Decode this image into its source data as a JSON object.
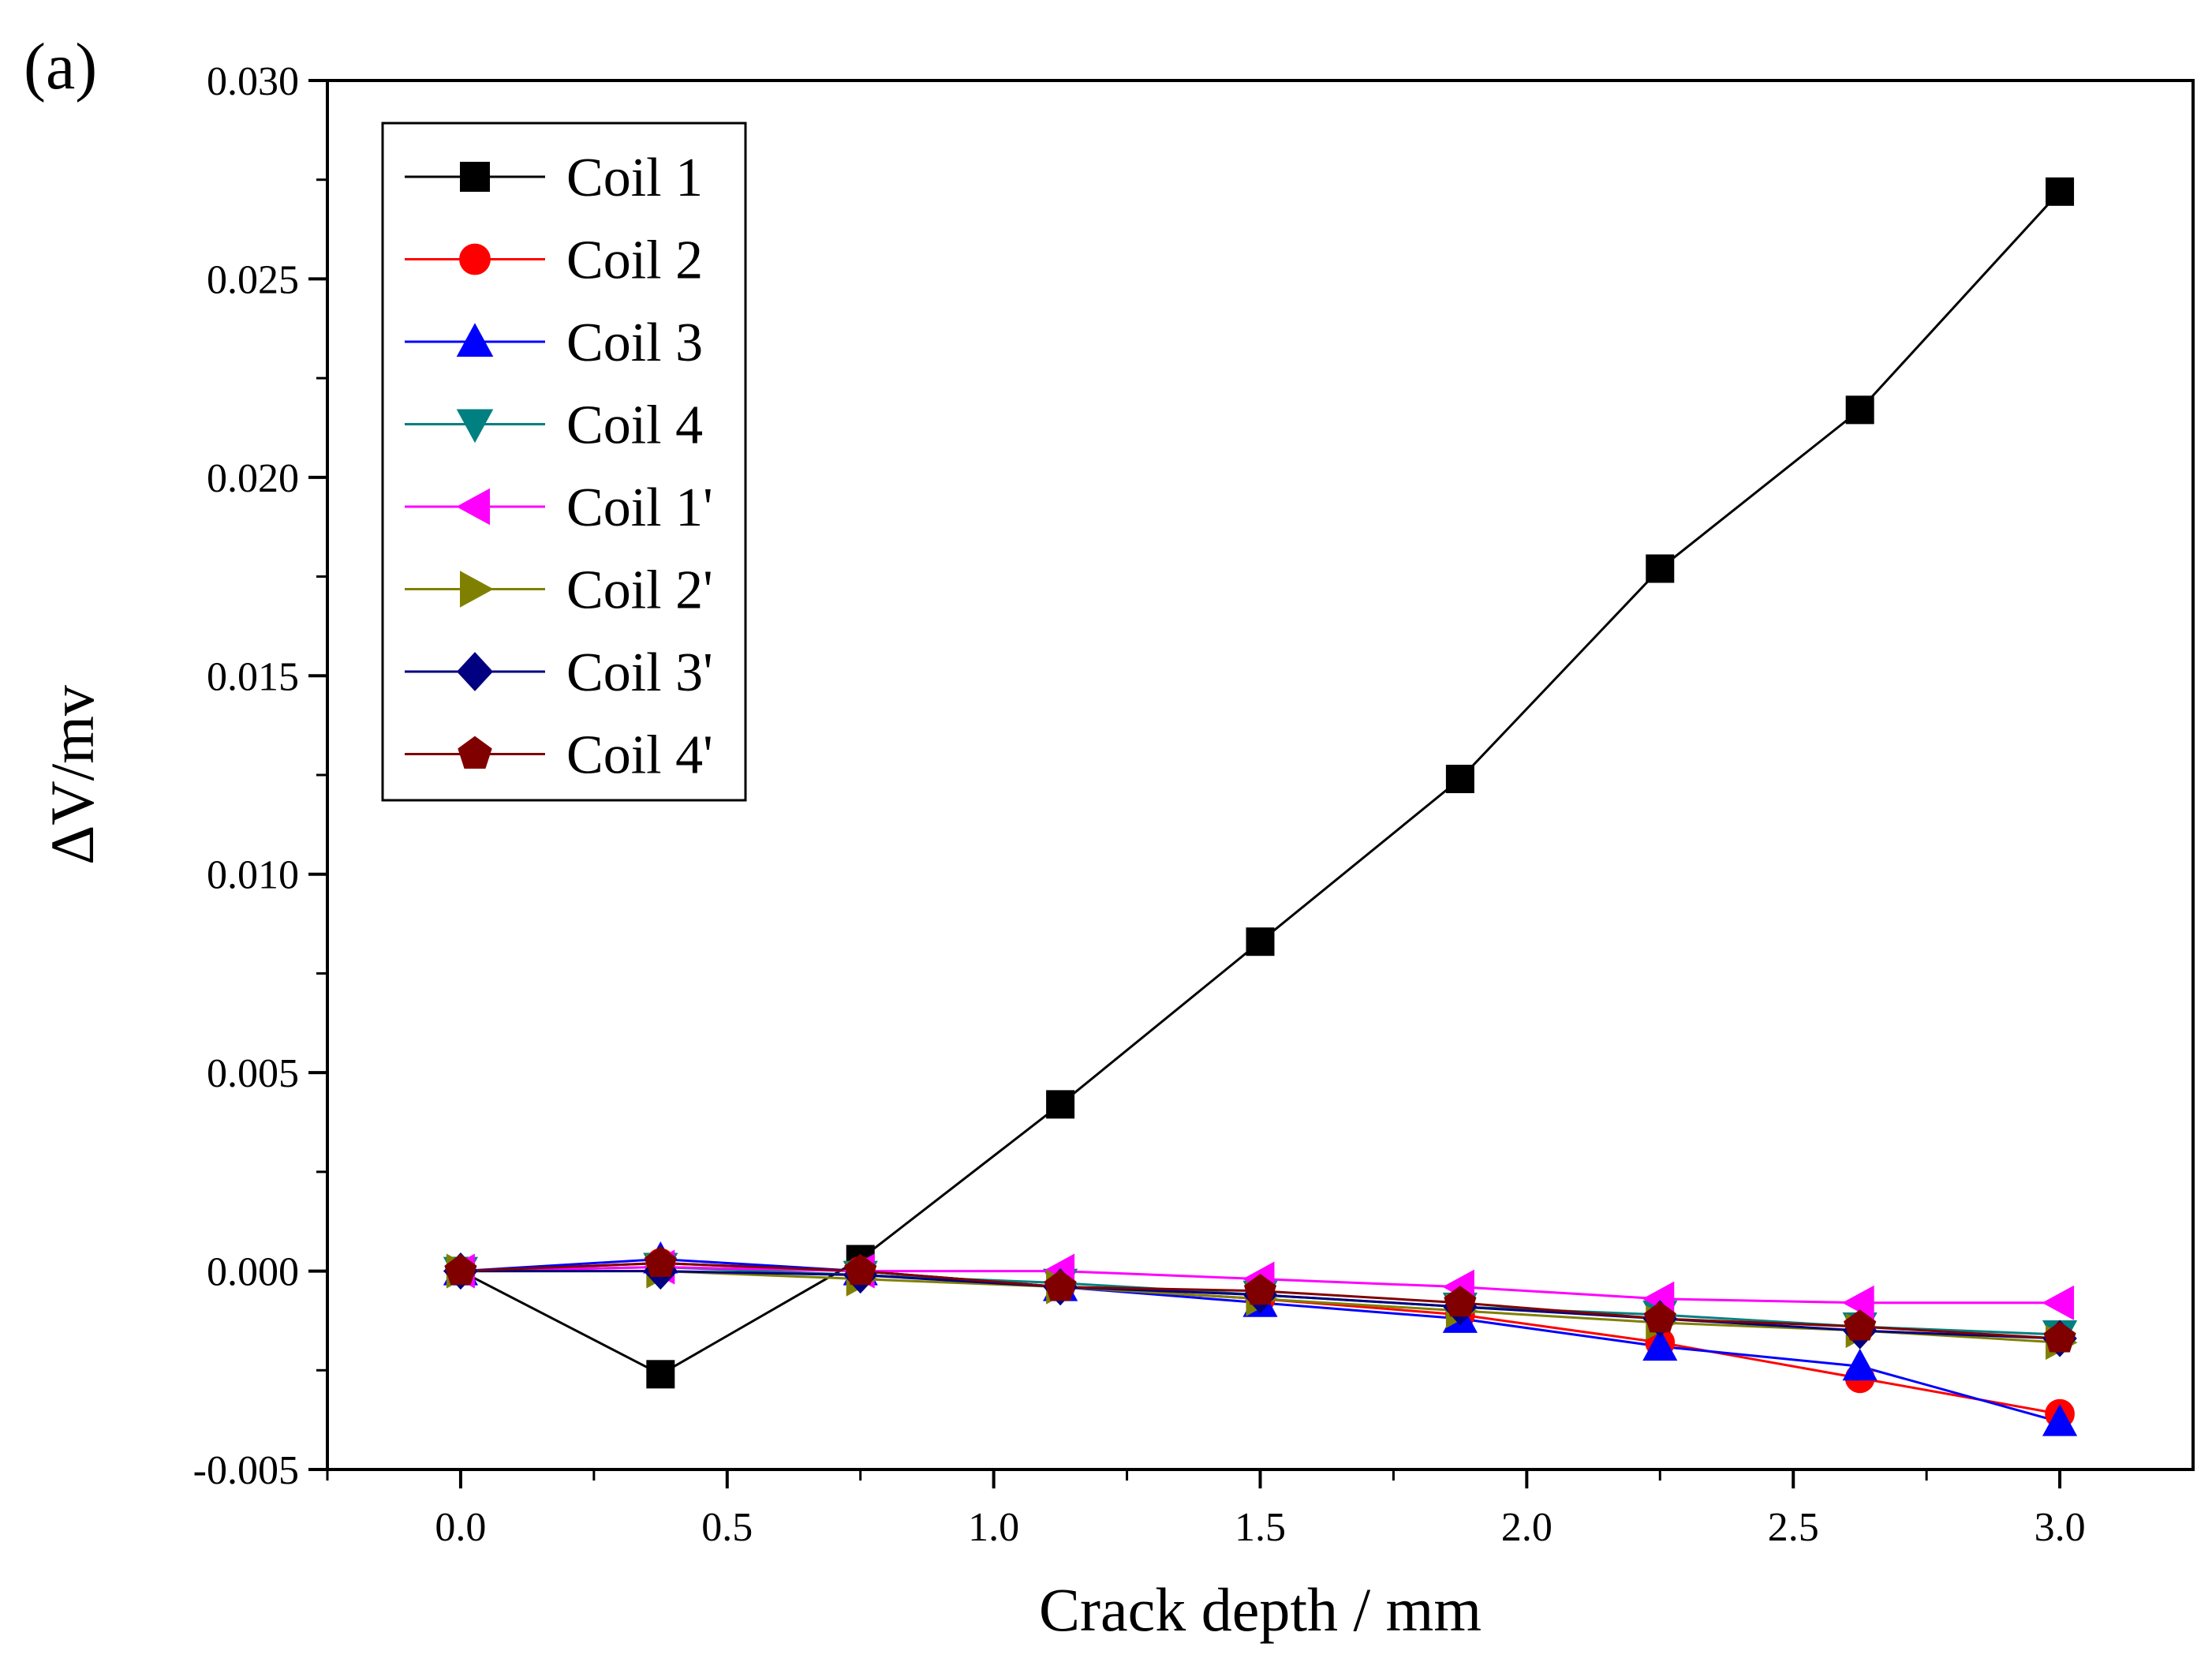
{
  "panel_label": "(a)",
  "chart_data": {
    "type": "line",
    "xlabel": "Crack depth / mm",
    "ylabel": "ΔV/mv",
    "xlim": [
      -0.25,
      3.25
    ],
    "ylim": [
      -0.005,
      0.03
    ],
    "xticks": [
      0.0,
      0.5,
      1.0,
      1.5,
      2.0,
      2.5,
      3.0
    ],
    "xtick_labels": [
      "0.0",
      "0.5",
      "1.0",
      "1.5",
      "2.0",
      "2.5",
      "3.0"
    ],
    "yticks": [
      -0.005,
      0.0,
      0.005,
      0.01,
      0.015,
      0.02,
      0.025,
      0.03
    ],
    "ytick_labels": [
      "-0.005",
      "0.000",
      "0.005",
      "0.010",
      "0.015",
      "0.020",
      "0.025",
      "0.030"
    ],
    "grid": false,
    "legend_position": "top-left",
    "x": [
      0,
      0.375,
      0.75,
      1.125,
      1.5,
      1.875,
      2.25,
      2.625,
      3.0
    ],
    "series": [
      {
        "name": "Coil 1",
        "color": "#000000",
        "marker": "square",
        "values": [
          0,
          -0.0026,
          0.0003,
          0.0042,
          0.0083,
          0.0124,
          0.0177,
          0.0217,
          0.0272
        ]
      },
      {
        "name": "Coil 2",
        "color": "#ff0000",
        "marker": "circle",
        "values": [
          0,
          0.0002,
          0.0,
          -0.0004,
          -0.0007,
          -0.0011,
          -0.0018,
          -0.0027,
          -0.0036
        ]
      },
      {
        "name": "Coil 3",
        "color": "#0000ff",
        "marker": "triangle-up",
        "values": [
          0,
          0.0003,
          0.0,
          -0.0004,
          -0.0008,
          -0.0012,
          -0.0019,
          -0.0024,
          -0.0038
        ]
      },
      {
        "name": "Coil 4",
        "color": "#008080",
        "marker": "triangle-down",
        "values": [
          0,
          0.0001,
          -0.0001,
          -0.0003,
          -0.0006,
          -0.0009,
          -0.0011,
          -0.0014,
          -0.0016
        ]
      },
      {
        "name": "Coil 1'",
        "color": "#ff00ff",
        "marker": "triangle-left",
        "values": [
          0,
          0.0001,
          0.0,
          0.0,
          -0.0002,
          -0.0004,
          -0.0007,
          -0.0008,
          -0.0008
        ]
      },
      {
        "name": "Coil 2'",
        "color": "#808000",
        "marker": "triangle-right",
        "values": [
          0,
          0.0,
          -0.0002,
          -0.0004,
          -0.0007,
          -0.001,
          -0.0013,
          -0.0015,
          -0.0018
        ]
      },
      {
        "name": "Coil 3'",
        "color": "#000080",
        "marker": "diamond",
        "values": [
          0,
          0.0,
          -0.0001,
          -0.0004,
          -0.0006,
          -0.0009,
          -0.0012,
          -0.0015,
          -0.0017
        ]
      },
      {
        "name": "Coil 4'",
        "color": "#800000",
        "marker": "pentagon",
        "values": [
          0,
          0.0002,
          0.0,
          -0.0004,
          -0.0005,
          -0.0008,
          -0.0012,
          -0.0014,
          -0.0017
        ]
      }
    ]
  }
}
